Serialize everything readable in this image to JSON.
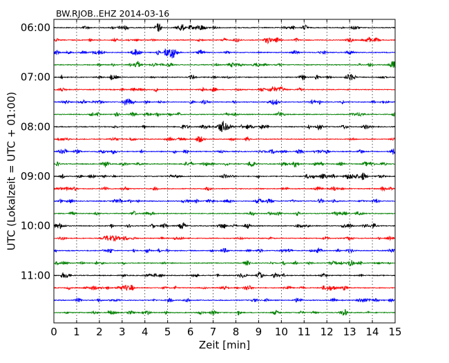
{
  "chart_data": {
    "type": "line",
    "title": "BW.RJOB..EHZ 2014-03-16",
    "xlabel": "Zeit  [min]",
    "ylabel": "UTC (Lokalzeit = UTC + 01:00)",
    "xlim": [
      0,
      15
    ],
    "x_ticks": [
      0,
      1,
      2,
      3,
      4,
      5,
      6,
      7,
      8,
      9,
      10,
      11,
      12,
      13,
      14,
      15
    ],
    "x_tick_labels": [
      "0",
      "1",
      "2",
      "3",
      "4",
      "5",
      "6",
      "7",
      "8",
      "9",
      "10",
      "11",
      "12",
      "13",
      "14",
      "15"
    ],
    "y_tick_labels": [
      "06:00",
      "07:00",
      "08:00",
      "09:00",
      "10:00",
      "11:00"
    ],
    "trace_interval_minutes": 15,
    "traces_per_hour": 4,
    "start_time": "06:00",
    "end_time": "12:00",
    "trace_start_times": [
      "06:00",
      "06:15",
      "06:30",
      "06:45",
      "07:00",
      "07:15",
      "07:30",
      "07:45",
      "08:00",
      "08:15",
      "08:30",
      "08:45",
      "09:00",
      "09:15",
      "09:30",
      "09:45",
      "10:00",
      "10:15",
      "10:30",
      "10:45",
      "11:00",
      "11:15",
      "11:30",
      "11:45"
    ],
    "trace_colors": [
      "#000000",
      "#ff0000",
      "#0000ff",
      "#008000"
    ],
    "grid": "vertical dotted",
    "legend": "none",
    "notable_events": [
      {
        "trace_start": "06:30",
        "x_minutes": 5.2,
        "description": "larger amplitude burst"
      },
      {
        "trace_start": "08:00",
        "x_minutes": 7.4,
        "description": "small spike"
      }
    ]
  }
}
